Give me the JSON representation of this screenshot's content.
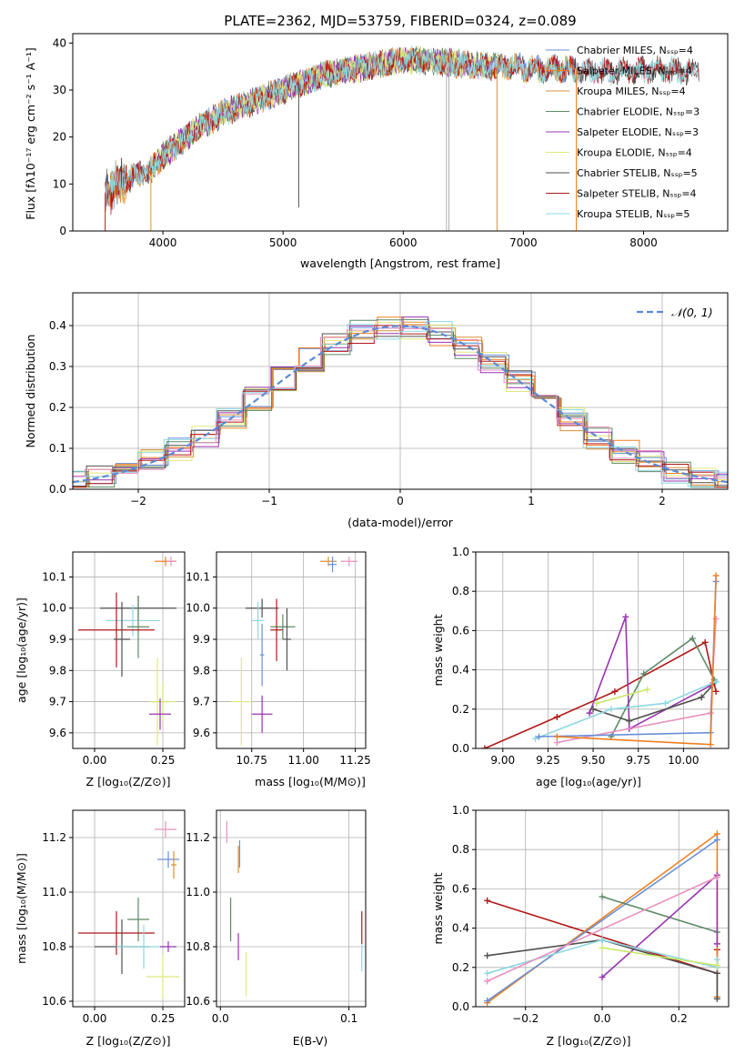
{
  "colors": [
    "#6a8fd8",
    "#ef7f20",
    "#d7913a",
    "#5d8a65",
    "#9a34b2",
    "#dfe87a",
    "#505050",
    "#b21818",
    "#8ed8e0",
    "#e891be",
    "#cbe86a"
  ],
  "chart_data": [
    {
      "id": "spectrum",
      "type": "line",
      "title": "PLATE=2362, MJD=53759, FIBERID=0324, z=0.089",
      "xlabel": "wavelength [Angstrom, rest frame]",
      "ylabel": "Flux [fλ10⁻¹⁷ erg cm⁻² s⁻¹ A⁻¹]",
      "xlim": [
        3250,
        8700
      ],
      "ylim": [
        0,
        42
      ],
      "xticks": [
        4000,
        5000,
        6000,
        7000,
        8000
      ],
      "yticks": [
        0,
        10,
        20,
        30,
        40
      ],
      "legend": "upper-right",
      "grid": false,
      "series": [
        {
          "name": "Chabrier MILES, Nₛₛₚ=4",
          "color": "#6a8fd8",
          "xrange": [
            3520,
            7440
          ]
        },
        {
          "name": "Salpeter MILES, Nₛₛₚ=4",
          "color": "#ef7f20",
          "xrange": [
            3520,
            7440
          ]
        },
        {
          "name": "Kroupa MILES, Nₛₛₚ=4",
          "color": "#d7913a",
          "xrange": [
            3520,
            7440
          ]
        },
        {
          "name": "Chabrier ELODIE, Nₛₛₚ=3",
          "color": "#5d8a65",
          "xrange": [
            3900,
            6780
          ]
        },
        {
          "name": "Salpeter ELODIE, Nₛₛₚ=3",
          "color": "#9a34b2",
          "xrange": [
            3900,
            6780
          ]
        },
        {
          "name": "Kroupa ELODIE, Nₛₛₚ=4",
          "color": "#dfe87a",
          "xrange": [
            3900,
            6780
          ]
        },
        {
          "name": "Chabrier STELIB, Nₛₛₚ=5",
          "color": "#505050",
          "xrange": [
            3520,
            8460
          ]
        },
        {
          "name": "Salpeter STELIB, Nₛₛₚ=4",
          "color": "#b21818",
          "xrange": [
            3520,
            8460
          ]
        },
        {
          "name": "Kroupa STELIB, Nₛₛₚ=5",
          "color": "#8ed8e0",
          "xrange": [
            3520,
            8460
          ]
        }
      ],
      "continuum": [
        [
          3520,
          8
        ],
        [
          3700,
          11
        ],
        [
          3900,
          13
        ],
        [
          4000,
          16
        ],
        [
          4150,
          19
        ],
        [
          4300,
          22
        ],
        [
          4500,
          25
        ],
        [
          4700,
          27
        ],
        [
          4900,
          29
        ],
        [
          5100,
          31
        ],
        [
          5300,
          33
        ],
        [
          5500,
          34
        ],
        [
          5700,
          35
        ],
        [
          5900,
          36
        ],
        [
          6100,
          36.5
        ],
        [
          6300,
          36
        ],
        [
          6500,
          35.5
        ],
        [
          6700,
          35
        ],
        [
          6900,
          35
        ],
        [
          7100,
          34.5
        ],
        [
          7300,
          34.5
        ],
        [
          7500,
          34
        ],
        [
          7700,
          34
        ],
        [
          7900,
          34
        ],
        [
          8100,
          34.5
        ],
        [
          8300,
          34
        ],
        [
          8460,
          34
        ]
      ]
    },
    {
      "id": "residuals",
      "type": "histogram",
      "xlabel": "(data-model)/error",
      "ylabel": "Normed distribution",
      "xlim": [
        -2.5,
        2.5
      ],
      "ylim": [
        0,
        0.48
      ],
      "xticks": [
        -2,
        -1,
        0,
        1,
        2
      ],
      "yticks": [
        0.0,
        0.1,
        0.2,
        0.3,
        0.4
      ],
      "grid": true,
      "legend": "upper-right",
      "reference": {
        "name": "𝒩(0, 1)",
        "color": "#5b8ad6"
      }
    },
    {
      "id": "age-vs-Z",
      "type": "errorbar",
      "xlabel": "Z [log₁₀(Z/Z⊙)]",
      "ylabel": "age  [log₁₀(age/yr)]",
      "xlim": [
        -0.08,
        0.33
      ],
      "ylim": [
        9.55,
        10.18
      ],
      "xticks": [
        0.0,
        0.25
      ],
      "yticks": [
        9.6,
        9.7,
        9.8,
        9.9,
        10.0,
        10.1
      ],
      "grid": true,
      "points": [
        {
          "x": 0.26,
          "y": 10.15,
          "xerr": 0.04,
          "yerr": 0.015,
          "c": "#ef7f20"
        },
        {
          "x": 0.28,
          "y": 10.15,
          "xerr": 0.02,
          "yerr": 0.015,
          "c": "#e891be"
        },
        {
          "x": 0.16,
          "y": 10.0,
          "xerr": 0.14,
          "yerr": 0.04,
          "c": "#505050"
        },
        {
          "x": 0.14,
          "y": 9.96,
          "xerr": 0.1,
          "yerr": 0.05,
          "c": "#8ed8e0"
        },
        {
          "x": 0.16,
          "y": 9.94,
          "xerr": 0.04,
          "yerr": 0.1,
          "c": "#5d8a65"
        },
        {
          "x": 0.08,
          "y": 9.93,
          "xerr": 0.14,
          "yerr": 0.12,
          "c": "#b21818"
        },
        {
          "x": 0.1,
          "y": 9.9,
          "xerr": 0.03,
          "yerr": 0.12,
          "c": "#505050"
        },
        {
          "x": 0.23,
          "y": 9.7,
          "xerr": 0.02,
          "yerr": 0.14,
          "c": "#dfe87a"
        },
        {
          "x": 0.25,
          "y": 9.7,
          "xerr": 0.05,
          "yerr": 0.06,
          "c": "#cbe86a"
        },
        {
          "x": 0.24,
          "y": 9.66,
          "xerr": 0.04,
          "yerr": 0.05,
          "c": "#9a34b2"
        }
      ]
    },
    {
      "id": "age-vs-mass",
      "type": "errorbar",
      "xlabel": "mass [log₁₀(M/M⊙)]",
      "ylabel": "",
      "xlim": [
        10.58,
        11.3
      ],
      "ylim": [
        9.55,
        10.18
      ],
      "xticks": [
        10.75,
        11.0,
        11.25
      ],
      "yticks": [
        9.6,
        9.7,
        9.8,
        9.9,
        10.0,
        10.1
      ],
      "grid": true,
      "points": [
        {
          "x": 11.12,
          "y": 10.15,
          "xerr": 0.04,
          "yerr": 0.015,
          "c": "#d7913a"
        },
        {
          "x": 11.22,
          "y": 10.15,
          "xerr": 0.04,
          "yerr": 0.015,
          "c": "#e891be"
        },
        {
          "x": 11.14,
          "y": 10.14,
          "xerr": 0.02,
          "yerr": 0.025,
          "c": "#6a8fd8"
        },
        {
          "x": 10.8,
          "y": 10.0,
          "xerr": 0.08,
          "yerr": 0.03,
          "c": "#505050"
        },
        {
          "x": 10.78,
          "y": 9.96,
          "xerr": 0.03,
          "yerr": 0.06,
          "c": "#8ed8e0"
        },
        {
          "x": 10.9,
          "y": 9.94,
          "xerr": 0.06,
          "yerr": 0.04,
          "c": "#5d8a65"
        },
        {
          "x": 10.87,
          "y": 9.93,
          "xerr": 0.03,
          "yerr": 0.1,
          "c": "#b21818"
        },
        {
          "x": 10.92,
          "y": 9.9,
          "xerr": 0.02,
          "yerr": 0.1,
          "c": "#505050"
        },
        {
          "x": 10.8,
          "y": 9.85,
          "xerr": 0.01,
          "yerr": 0.1,
          "c": "#6a8fd8"
        },
        {
          "x": 10.7,
          "y": 9.7,
          "xerr": 0.05,
          "yerr": 0.14,
          "c": "#dfe87a"
        },
        {
          "x": 10.8,
          "y": 9.66,
          "xerr": 0.05,
          "yerr": 0.06,
          "c": "#9a34b2"
        }
      ]
    },
    {
      "id": "weight-vs-age",
      "type": "line",
      "xlabel": "age  [log₁₀(age/yr)]",
      "ylabel": "mass weight",
      "xlim": [
        8.85,
        10.25
      ],
      "ylim": [
        0.0,
        1.0
      ],
      "xticks": [
        9.0,
        9.25,
        9.5,
        9.75,
        10.0
      ],
      "yticks": [
        0.0,
        0.2,
        0.4,
        0.6,
        0.8,
        1.0
      ],
      "grid": true,
      "series": [
        {
          "c": "#b21818",
          "pts": [
            [
              8.9,
              0.0
            ],
            [
              9.3,
              0.16
            ],
            [
              9.62,
              0.29
            ],
            [
              10.12,
              0.54
            ],
            [
              10.18,
              0.29
            ]
          ]
        },
        {
          "c": "#5d8a65",
          "pts": [
            [
              9.6,
              0.06
            ],
            [
              9.78,
              0.38
            ],
            [
              10.05,
              0.56
            ],
            [
              10.17,
              0.35
            ]
          ]
        },
        {
          "c": "#9a34b2",
          "pts": [
            [
              9.48,
              0.18
            ],
            [
              9.68,
              0.67
            ],
            [
              9.7,
              0.1
            ],
            [
              10.15,
              0.32
            ]
          ]
        },
        {
          "c": "#505050",
          "pts": [
            [
              9.5,
              0.2
            ],
            [
              9.7,
              0.14
            ],
            [
              10.1,
              0.26
            ],
            [
              10.18,
              0.34
            ]
          ]
        },
        {
          "c": "#8ed8e0",
          "pts": [
            [
              9.18,
              0.05
            ],
            [
              9.6,
              0.2
            ],
            [
              9.9,
              0.23
            ],
            [
              10.18,
              0.34
            ]
          ]
        },
        {
          "c": "#e891be",
          "pts": [
            [
              9.3,
              0.03
            ],
            [
              10.15,
              0.18
            ],
            [
              10.18,
              0.66
            ]
          ]
        },
        {
          "c": "#6a8fd8",
          "pts": [
            [
              9.2,
              0.06
            ],
            [
              10.15,
              0.08
            ],
            [
              10.18,
              0.85
            ]
          ]
        },
        {
          "c": "#cbe86a",
          "pts": [
            [
              9.52,
              0.23
            ],
            [
              9.8,
              0.3
            ]
          ]
        },
        {
          "c": "#ef7f20",
          "pts": [
            [
              9.3,
              0.06
            ],
            [
              10.15,
              0.02
            ],
            [
              10.18,
              0.88
            ]
          ]
        }
      ]
    },
    {
      "id": "mass-vs-Z",
      "type": "errorbar",
      "xlabel": "Z [log₁₀(Z/Z⊙)]",
      "ylabel": "mass [log₁₀(M/M⊙)]",
      "xlim": [
        -0.08,
        0.33
      ],
      "ylim": [
        10.58,
        11.3
      ],
      "xticks": [
        0.0,
        0.25
      ],
      "yticks": [
        10.6,
        10.8,
        11.0,
        11.2
      ],
      "grid": true,
      "points": [
        {
          "x": 0.26,
          "y": 11.23,
          "xerr": 0.04,
          "yerr": 0.03,
          "c": "#e891be"
        },
        {
          "x": 0.27,
          "y": 11.12,
          "xerr": 0.04,
          "yerr": 0.03,
          "c": "#6a8fd8"
        },
        {
          "x": 0.29,
          "y": 11.1,
          "xerr": 0.01,
          "yerr": 0.05,
          "c": "#d7913a"
        },
        {
          "x": 0.16,
          "y": 10.9,
          "xerr": 0.04,
          "yerr": 0.08,
          "c": "#5d8a65"
        },
        {
          "x": 0.08,
          "y": 10.85,
          "xerr": 0.14,
          "yerr": 0.08,
          "c": "#b21818"
        },
        {
          "x": 0.1,
          "y": 10.8,
          "xerr": 0.1,
          "yerr": 0.1,
          "c": "#505050"
        },
        {
          "x": 0.18,
          "y": 10.8,
          "xerr": 0.1,
          "yerr": 0.08,
          "c": "#8ed8e0"
        },
        {
          "x": 0.27,
          "y": 10.8,
          "xerr": 0.03,
          "yerr": 0.02,
          "c": "#9a34b2"
        },
        {
          "x": 0.25,
          "y": 10.69,
          "xerr": 0.06,
          "yerr": 0.08,
          "c": "#dfe87a"
        }
      ]
    },
    {
      "id": "mass-vs-EBV",
      "type": "errorbar",
      "xlabel": "E(B-V)",
      "ylabel": "",
      "xlim": [
        -0.003,
        0.113
      ],
      "ylim": [
        10.58,
        11.3
      ],
      "xticks": [
        0.0,
        0.1
      ],
      "yticks": [
        10.6,
        10.8,
        11.0,
        11.2
      ],
      "grid": true,
      "points": [
        {
          "x": 0.005,
          "y": 11.22,
          "xerr": 0.0,
          "yerr": 0.04,
          "c": "#e891be"
        },
        {
          "x": 0.015,
          "y": 11.14,
          "xerr": 0.0,
          "yerr": 0.05,
          "c": "#6a8fd8"
        },
        {
          "x": 0.014,
          "y": 11.12,
          "xerr": 0.0,
          "yerr": 0.05,
          "c": "#d7913a"
        },
        {
          "x": 0.008,
          "y": 10.9,
          "xerr": 0.0,
          "yerr": 0.08,
          "c": "#5d8a65"
        },
        {
          "x": 0.014,
          "y": 10.8,
          "xerr": 0.0,
          "yerr": 0.05,
          "c": "#9a34b2"
        },
        {
          "x": 0.02,
          "y": 10.7,
          "xerr": 0.0,
          "yerr": 0.08,
          "c": "#dfe87a"
        },
        {
          "x": 0.11,
          "y": 10.87,
          "xerr": 0.0,
          "yerr": 0.06,
          "c": "#b21818"
        },
        {
          "x": 0.11,
          "y": 10.76,
          "xerr": 0.0,
          "yerr": 0.05,
          "c": "#8ed8e0"
        }
      ]
    },
    {
      "id": "weight-vs-Z",
      "type": "line",
      "xlabel": "Z [log₁₀(Z/Z⊙)]",
      "ylabel": "mass weight",
      "xlim": [
        -0.33,
        0.33
      ],
      "ylim": [
        0.0,
        1.0
      ],
      "xticks": [
        -0.2,
        0.0,
        0.2
      ],
      "yticks": [
        0.0,
        0.2,
        0.4,
        0.6,
        0.8,
        1.0
      ],
      "grid": true,
      "series": [
        {
          "c": "#b21818",
          "pts": [
            [
              -0.3,
              0.54
            ],
            [
              0.3,
              0.17
            ],
            [
              0.3,
              0.29
            ]
          ]
        },
        {
          "c": "#ef7f20",
          "pts": [
            [
              -0.3,
              0.02
            ],
            [
              0.3,
              0.88
            ],
            [
              0.3,
              0.05
            ]
          ]
        },
        {
          "c": "#6a8fd8",
          "pts": [
            [
              -0.3,
              0.03
            ],
            [
              0.3,
              0.85
            ]
          ]
        },
        {
          "c": "#5d8a65",
          "pts": [
            [
              0.0,
              0.56
            ],
            [
              0.3,
              0.38
            ]
          ]
        },
        {
          "c": "#9a34b2",
          "pts": [
            [
              0.0,
              0.15
            ],
            [
              0.3,
              0.67
            ],
            [
              0.3,
              0.32
            ]
          ]
        },
        {
          "c": "#505050",
          "pts": [
            [
              -0.3,
              0.26
            ],
            [
              0.0,
              0.34
            ],
            [
              0.3,
              0.17
            ],
            [
              0.3,
              0.04
            ]
          ]
        },
        {
          "c": "#8ed8e0",
          "pts": [
            [
              -0.3,
              0.17
            ],
            [
              0.0,
              0.34
            ],
            [
              0.3,
              0.2
            ],
            [
              0.3,
              0.24
            ]
          ]
        },
        {
          "c": "#e891be",
          "pts": [
            [
              -0.3,
              0.13
            ],
            [
              0.3,
              0.66
            ]
          ]
        },
        {
          "c": "#cbe86a",
          "pts": [
            [
              0.0,
              0.3
            ],
            [
              0.3,
              0.21
            ]
          ]
        }
      ]
    }
  ]
}
